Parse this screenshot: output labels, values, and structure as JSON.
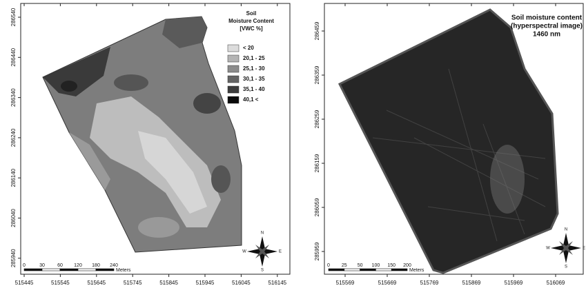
{
  "panels": [
    {
      "title_lines": [],
      "legend": {
        "title_lines": [
          "Soil",
          "Moisture Content",
          "[VWC %]"
        ],
        "items": [
          "< 20",
          "20,1 - 25",
          "25,1 - 30",
          "30,1 - 35",
          "35,1 - 40",
          "40,1 <"
        ]
      },
      "x_ticks": [
        "515445",
        "515545",
        "515645",
        "515745",
        "515845",
        "515945",
        "516045",
        "516145"
      ],
      "y_ticks": [
        "286540",
        "286440",
        "286340",
        "286240",
        "286140",
        "286040",
        "285940"
      ],
      "scale_labels": [
        "0",
        "30",
        "60",
        "120",
        "180",
        "240"
      ],
      "scale_unit": "Meters",
      "compass": {
        "n": "N",
        "s": "S",
        "e": "E",
        "w": "W"
      }
    },
    {
      "title_lines": [
        "Soil moisture content",
        "(hyperspectral image)",
        "1460 nm"
      ],
      "x_ticks": [
        "515569",
        "515669",
        "515769",
        "515869",
        "515969",
        "516069"
      ],
      "y_ticks": [
        "286459",
        "286359",
        "286259",
        "286159",
        "286059",
        "285959"
      ],
      "scale_labels": [
        "0",
        "25",
        "50",
        "100",
        "150",
        "200"
      ],
      "scale_unit": "Meters",
      "compass": {
        "n": "N",
        "s": "S",
        "e": "E",
        "w": "W"
      }
    }
  ]
}
